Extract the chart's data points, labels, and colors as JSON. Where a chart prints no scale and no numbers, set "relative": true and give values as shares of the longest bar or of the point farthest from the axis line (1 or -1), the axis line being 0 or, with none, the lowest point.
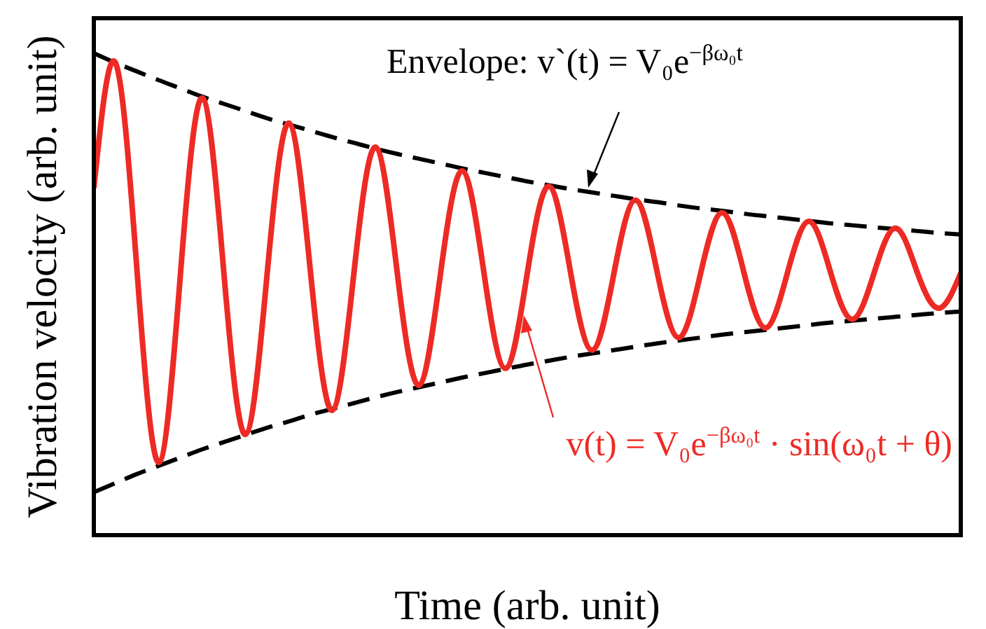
{
  "chart_data": {
    "type": "line",
    "relative": true,
    "xlabel": "Time (arb. unit)",
    "ylabel": "Vibration velocity (arb. unit)",
    "categories": [
      null,
      null,
      null,
      null,
      null,
      null,
      null,
      null,
      null,
      null,
      null,
      null,
      null,
      null,
      null,
      null,
      null,
      null,
      null,
      null,
      null,
      null,
      null,
      null,
      null,
      null,
      null,
      null,
      null,
      null,
      null,
      null,
      null,
      null,
      null,
      null,
      null,
      null,
      null,
      null,
      null
    ],
    "series": [
      {
        "color": "#000000",
        "line_style": "dashed",
        "values": [
          1.0,
          0.98,
          0.962,
          0.944,
          0.927,
          0.91,
          0.895,
          0.88,
          0.865,
          0.852,
          0.839,
          0.826,
          0.814,
          0.802,
          0.791,
          0.781,
          0.771,
          0.761,
          0.752,
          0.743,
          0.734,
          0.726,
          0.718,
          0.711,
          0.704,
          0.697,
          0.691,
          0.684,
          0.678,
          0.673,
          0.667,
          0.662,
          0.657,
          0.652,
          0.647,
          0.643,
          0.639,
          0.635,
          0.631,
          0.627,
          0.624
        ]
      },
      {
        "color": "#000000",
        "line_style": "dashed",
        "values": [
          0.089,
          0.108,
          0.127,
          0.144,
          0.161,
          0.178,
          0.193,
          0.208,
          0.223,
          0.236,
          0.25,
          0.262,
          0.274,
          0.286,
          0.297,
          0.307,
          0.317,
          0.327,
          0.336,
          0.345,
          0.354,
          0.362,
          0.37,
          0.377,
          0.384,
          0.391,
          0.398,
          0.404,
          0.41,
          0.416,
          0.421,
          0.426,
          0.431,
          0.436,
          0.441,
          0.445,
          0.449,
          0.453,
          0.457,
          0.461,
          0.464
        ]
      },
      {
        "color": "#ee2a24",
        "line_style": "solid",
        "values": [
          0.72,
          0.98,
          0.544,
          0.151,
          0.544,
          0.907,
          0.544,
          0.209,
          0.544,
          0.855,
          0.544,
          0.259,
          0.544,
          0.805,
          0.544,
          0.311,
          0.544,
          0.756,
          0.544,
          0.346,
          0.544,
          0.724,
          0.544,
          0.384,
          0.544,
          0.695,
          0.544,
          0.41,
          0.544,
          0.669,
          0.544,
          0.43,
          0.544,
          0.651,
          0.544,
          0.448,
          0.544,
          0.637,
          0.544,
          0.471,
          0.544
        ]
      }
    ],
    "annotations": [
      "Envelope:  v`(t) = V₀e$^{−βω₀t}$",
      "v(t) = V₀e$^{−βω₀t}$ · sin(ω₀t + θ)"
    ]
  }
}
